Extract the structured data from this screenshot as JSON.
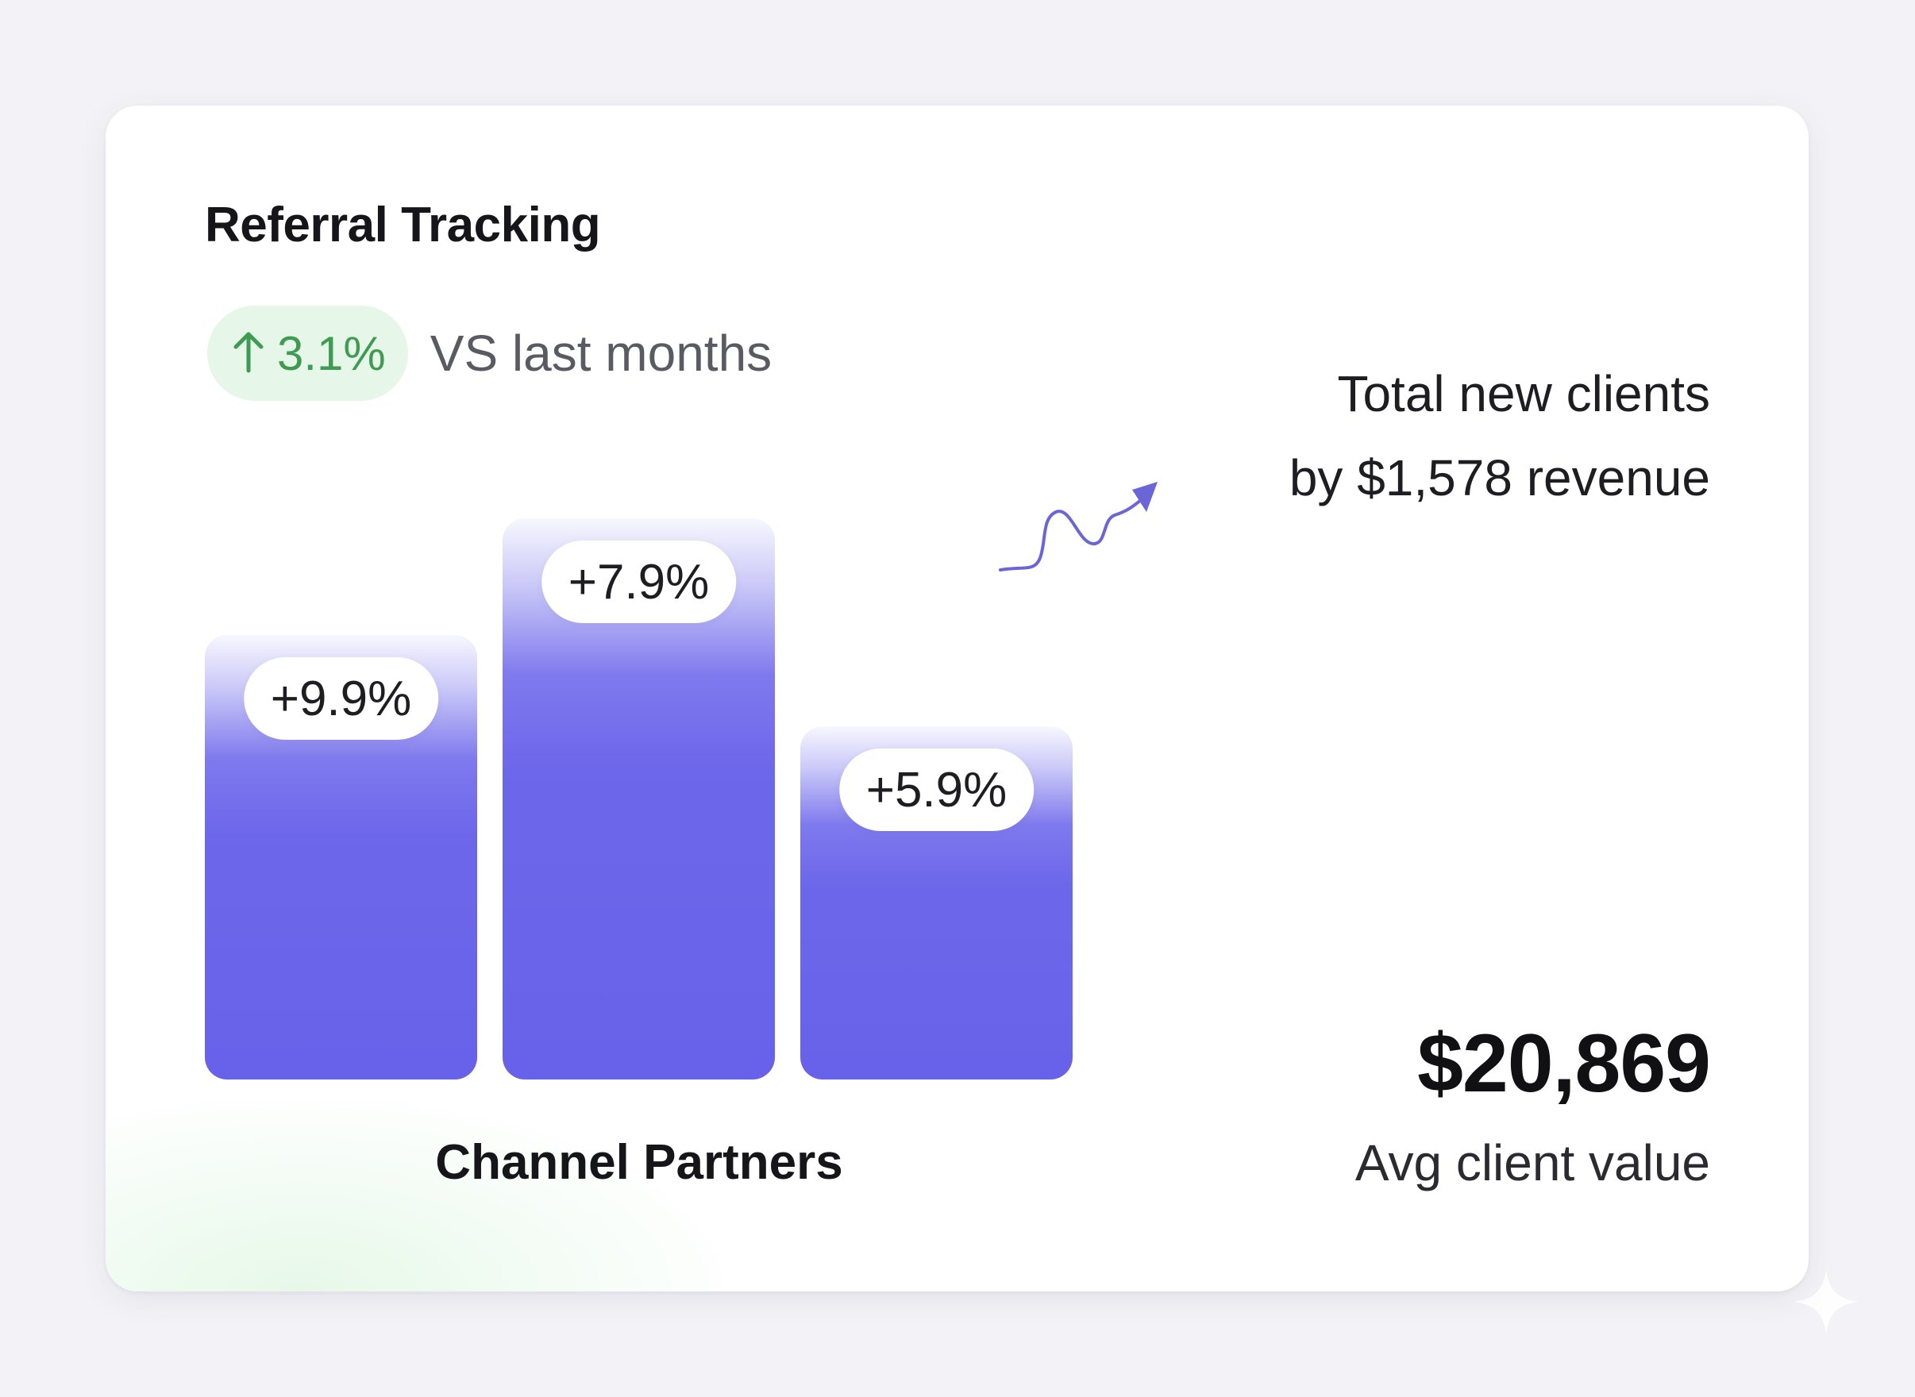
{
  "card": {
    "title": "Referral Tracking",
    "trend": {
      "direction": "up",
      "value": "3.1%",
      "caption": "VS last months",
      "color": "#3f9a52",
      "badge_background": "#e6f6e8"
    },
    "summary": {
      "line1": "Total new clients",
      "line2": "by $1,578 revenue"
    },
    "avg_value": "$20,869",
    "avg_caption": "Avg client value"
  },
  "icons": {
    "trend": "arrow-up-icon",
    "pointer": "squiggle-arrow-icon",
    "corner": "sparkle-icon"
  },
  "colors": {
    "bar": "#6862ea",
    "accent_arrow": "#6a66d8",
    "page_background": "#f3f3f7"
  },
  "chart_data": {
    "type": "bar",
    "category": "Channel Partners",
    "values": [
      9.9,
      7.9,
      5.9
    ],
    "labels": [
      "+9.9%",
      "+7.9%",
      "+5.9%"
    ],
    "xlabel": "Channel Partners",
    "ylabel": "",
    "title": ""
  }
}
